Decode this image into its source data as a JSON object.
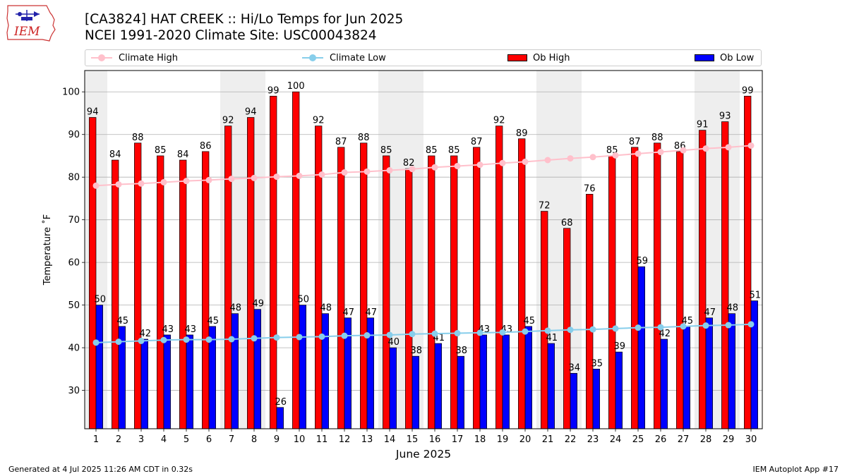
{
  "title_line1": "[CA3824] HAT CREEK :: Hi/Lo Temps for Jun 2025",
  "title_line2": "NCEI 1991-2020 Climate Site: USC00043824",
  "logo_text": "IEM",
  "footer_left": "Generated at 4 Jul 2025 11:26 AM CDT in 0.32s",
  "footer_right": "IEM Autoplot App #17",
  "colors": {
    "ob_high": "#ff0000",
    "ob_low": "#0000ff",
    "climate_high": "#ffc0cb",
    "climate_low": "#87ceeb",
    "weekend_shade": "#eeeeee",
    "grid": "#b0b0b0"
  },
  "legend": [
    {
      "key": "climate_high",
      "label": "Climate High",
      "kind": "line"
    },
    {
      "key": "climate_low",
      "label": "Climate Low",
      "kind": "line"
    },
    {
      "key": "ob_high",
      "label": "Ob High",
      "kind": "bar"
    },
    {
      "key": "ob_low",
      "label": "Ob Low",
      "kind": "bar"
    }
  ],
  "chart_data": {
    "type": "bar",
    "xlabel": "June 2025",
    "ylabel": "Temperature ˚F",
    "ylim": [
      21,
      105
    ],
    "yticks": [
      30,
      40,
      50,
      60,
      70,
      80,
      90,
      100
    ],
    "grid": "horizontal",
    "legend_position": "top",
    "categories": [
      "1",
      "2",
      "3",
      "4",
      "5",
      "6",
      "7",
      "8",
      "9",
      "10",
      "11",
      "12",
      "13",
      "14",
      "15",
      "16",
      "17",
      "18",
      "19",
      "20",
      "21",
      "22",
      "23",
      "24",
      "25",
      "26",
      "27",
      "28",
      "29",
      "30"
    ],
    "shaded_days": [
      1,
      7,
      8,
      14,
      15,
      21,
      22,
      28,
      29
    ],
    "series": [
      {
        "name": "Ob High",
        "kind": "bar",
        "values": [
          94,
          84,
          88,
          85,
          84,
          86,
          92,
          94,
          99,
          100,
          92,
          87,
          88,
          85,
          82,
          85,
          85,
          87,
          92,
          89,
          72,
          68,
          76,
          85,
          87,
          88,
          86,
          91,
          93,
          99
        ]
      },
      {
        "name": "Ob Low",
        "kind": "bar",
        "values": [
          50,
          45,
          42,
          43,
          43,
          45,
          48,
          49,
          26,
          50,
          48,
          47,
          47,
          40,
          38,
          41,
          38,
          43,
          43,
          45,
          41,
          34,
          35,
          39,
          59,
          42,
          45,
          47,
          48,
          51
        ]
      },
      {
        "name": "Climate High",
        "kind": "line",
        "values": [
          78.0,
          78.3,
          78.5,
          78.8,
          79.1,
          79.3,
          79.6,
          79.8,
          80.1,
          80.3,
          80.6,
          81.1,
          81.3,
          81.6,
          81.9,
          82.3,
          82.6,
          82.9,
          83.3,
          83.6,
          84.0,
          84.4,
          84.7,
          85.1,
          85.5,
          85.9,
          86.3,
          86.7,
          87.0,
          87.4
        ]
      },
      {
        "name": "Climate Low",
        "kind": "line",
        "values": [
          41.2,
          41.4,
          41.6,
          41.8,
          41.9,
          41.9,
          42.0,
          42.2,
          42.4,
          42.5,
          42.6,
          42.8,
          42.9,
          43.0,
          43.2,
          43.3,
          43.4,
          43.5,
          43.6,
          43.8,
          44.0,
          44.2,
          44.3,
          44.5,
          44.7,
          44.8,
          45.0,
          45.2,
          45.3,
          45.5
        ]
      }
    ]
  }
}
